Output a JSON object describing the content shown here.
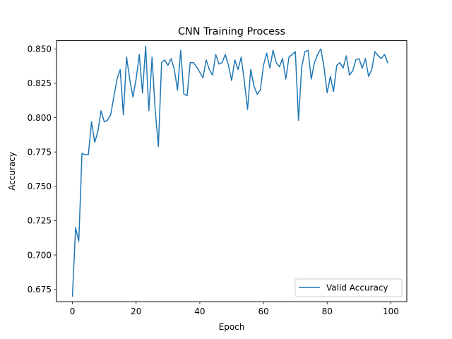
{
  "chart_data": {
    "type": "line",
    "title": "CNN Training Process",
    "xlabel": "Epoch",
    "ylabel": "Accuracy",
    "xlim": [
      -5,
      105
    ],
    "ylim": [
      0.666,
      0.856
    ],
    "xticks": [
      0,
      20,
      40,
      60,
      80,
      100
    ],
    "yticks": [
      0.675,
      0.7,
      0.725,
      0.75,
      0.775,
      0.8,
      0.825,
      0.85
    ],
    "ytick_labels": [
      "0.675",
      "0.700",
      "0.725",
      "0.750",
      "0.775",
      "0.800",
      "0.825",
      "0.850"
    ],
    "grid": false,
    "legend_position": "lower-right",
    "series": [
      {
        "name": "Valid Accuracy",
        "color": "#1f77b4",
        "x": [
          0,
          1,
          2,
          3,
          4,
          5,
          6,
          7,
          8,
          9,
          10,
          11,
          12,
          13,
          14,
          15,
          16,
          17,
          18,
          19,
          20,
          21,
          22,
          23,
          24,
          25,
          26,
          27,
          28,
          29,
          30,
          31,
          32,
          33,
          34,
          35,
          36,
          37,
          38,
          39,
          40,
          41,
          42,
          43,
          44,
          45,
          46,
          47,
          48,
          49,
          50,
          51,
          52,
          53,
          54,
          55,
          56,
          57,
          58,
          59,
          60,
          61,
          62,
          63,
          64,
          65,
          66,
          67,
          68,
          69,
          70,
          71,
          72,
          73,
          74,
          75,
          76,
          77,
          78,
          79,
          80,
          81,
          82,
          83,
          84,
          85,
          86,
          87,
          88,
          89,
          90,
          91,
          92,
          93,
          94,
          95,
          96,
          97,
          98,
          99
        ],
        "values": [
          0.67,
          0.72,
          0.71,
          0.774,
          0.773,
          0.773,
          0.797,
          0.782,
          0.79,
          0.805,
          0.797,
          0.798,
          0.802,
          0.815,
          0.828,
          0.835,
          0.802,
          0.844,
          0.828,
          0.815,
          0.828,
          0.846,
          0.818,
          0.852,
          0.805,
          0.844,
          0.805,
          0.779,
          0.84,
          0.842,
          0.838,
          0.843,
          0.835,
          0.82,
          0.849,
          0.817,
          0.816,
          0.84,
          0.84,
          0.837,
          0.833,
          0.829,
          0.842,
          0.835,
          0.831,
          0.846,
          0.839,
          0.84,
          0.846,
          0.838,
          0.827,
          0.842,
          0.835,
          0.844,
          0.826,
          0.806,
          0.835,
          0.823,
          0.817,
          0.82,
          0.838,
          0.847,
          0.836,
          0.849,
          0.84,
          0.837,
          0.843,
          0.828,
          0.844,
          0.846,
          0.848,
          0.798,
          0.837,
          0.848,
          0.849,
          0.828,
          0.84,
          0.846,
          0.85,
          0.837,
          0.818,
          0.83,
          0.819,
          0.838,
          0.84,
          0.836,
          0.845,
          0.831,
          0.834,
          0.842,
          0.843,
          0.836,
          0.843,
          0.83,
          0.835,
          0.848,
          0.845,
          0.843,
          0.846,
          0.84
        ]
      }
    ]
  }
}
